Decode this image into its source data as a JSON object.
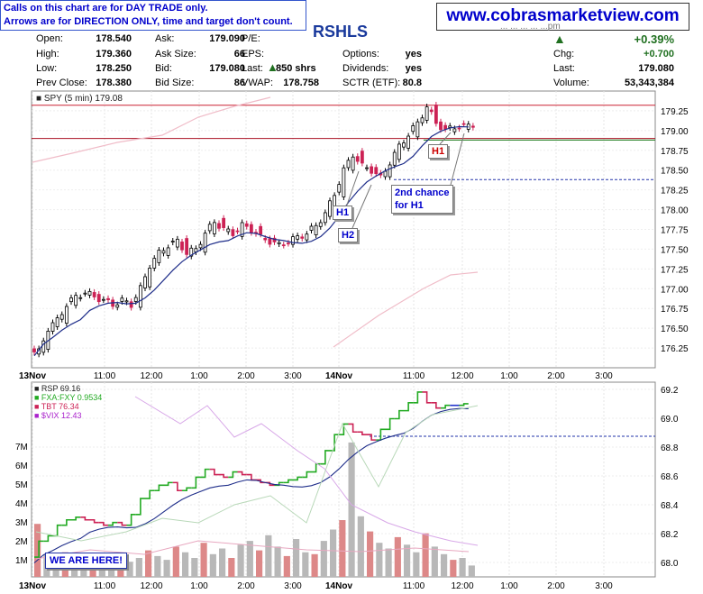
{
  "warning": {
    "line1": "Calls on this chart are for DAY TRADE only.",
    "line2": "Arrows are for DIRECTION ONLY, time and target don't count."
  },
  "site": "www.cobrasmarketview.com",
  "symbol": "RSHLS",
  "date_fragment": "... ... ... ... ...pm",
  "quote": {
    "open_label": "Open:",
    "open": "178.540",
    "high_label": "High:",
    "high": "179.360",
    "low_label": "Low:",
    "low": "178.250",
    "prev_label": "Prev Close:",
    "prev": "178.380",
    "ask_label": "Ask:",
    "ask": "179.090",
    "asksize_label": "Ask Size:",
    "asksize": "66",
    "bid_label": "Bid:",
    "bid": "179.080",
    "bidsize_label": "Bid Size:",
    "bidsize": "86",
    "pe_label": "P/E:",
    "pe": "",
    "eps_label": "EPS:",
    "eps": "",
    "last_label": "Last:",
    "last_shares": "850 shrs",
    "vwap_label": "VWAP:",
    "vwap": "178.758",
    "options_label": "Options:",
    "options": "yes",
    "dividends_label": "Dividends:",
    "dividends": "yes",
    "sctr_label": "SCTR (ETF):",
    "sctr": "80.8",
    "change_pct": "+0.39%",
    "chg_label": "Chg:",
    "chg": "+0.700",
    "last2_label": "Last:",
    "last2": "179.080",
    "volume_label": "Volume:",
    "volume": "53,343,384"
  },
  "colors": {
    "up": "#000000",
    "down": "#cc2255",
    "accent": "#0000cc",
    "green": "#207020",
    "rsp_up": "#22aa22",
    "rsp_down": "#cc2255",
    "rsp_flat": "#2233cc"
  },
  "annotations": {
    "h1_top": "H1",
    "h1_bottom": "H1",
    "h2": "H2",
    "second_chance": "2nd chance\nfor H1",
    "here": "WE ARE HERE!"
  },
  "chart_data": [
    {
      "type": "candlestick",
      "legend": "SPY (5 min) 179.08",
      "ylim": [
        176.0,
        179.5
      ],
      "y_ticks": [
        "179.25",
        "179.00",
        "178.75",
        "178.50",
        "178.25",
        "178.00",
        "177.75",
        "177.50",
        "177.25",
        "177.00",
        "176.75",
        "176.50",
        "176.25"
      ],
      "x_labels": [
        "13Nov",
        "11:00",
        "12:00",
        "1:00",
        "2:00",
        "3:00",
        "14Nov",
        "11:00",
        "12:00",
        "1:00",
        "2:00",
        "3:00"
      ],
      "close_path": [
        176.2,
        176.5,
        176.6,
        176.8,
        176.9,
        176.95,
        176.9,
        176.85,
        176.8,
        176.85,
        176.8,
        177.0,
        177.3,
        177.45,
        177.55,
        177.6,
        177.45,
        177.5,
        177.7,
        177.85,
        177.75,
        177.7,
        177.8,
        177.75,
        177.65,
        177.6,
        177.55,
        177.6,
        177.65,
        177.7,
        177.8,
        177.95,
        178.2,
        178.5,
        178.7,
        178.55,
        178.5,
        178.4,
        178.6,
        178.8,
        178.95,
        179.1,
        179.3,
        179.1,
        179.0,
        179.05,
        179.05,
        179.08
      ],
      "lines": {
        "red_resistance": 179.32,
        "red_prev_close": 178.9,
        "green": 178.88,
        "blue_dashed": 178.38
      },
      "notes": [
        "H1",
        "H2",
        "2nd chance for H1",
        "H1"
      ]
    },
    {
      "type": "line",
      "legend": [
        "RSP 69.16",
        "FXA:FXY 0.9534",
        "TBT 76.34",
        "$VIX 12.43"
      ],
      "ylim": [
        67.9,
        69.25
      ],
      "y_ticks_right": [
        "69.2",
        "69.0",
        "68.8",
        "68.6",
        "68.4",
        "68.2",
        "68.0"
      ],
      "y_ticks_left": [
        "7M",
        "6M",
        "5M",
        "4M",
        "3M",
        "2M",
        "1M"
      ],
      "x_labels": [
        "13Nov",
        "11:00",
        "12:00",
        "1:00",
        "2:00",
        "3:00",
        "14Nov",
        "11:00",
        "12:00",
        "1:00",
        "2:00",
        "3:00"
      ],
      "volume_m": [
        2.8,
        1.2,
        1.0,
        1.3,
        0.9,
        0.8,
        1.1,
        0.7,
        0.9,
        1.2,
        0.8,
        1.0,
        1.4,
        1.1,
        0.9,
        1.6,
        1.3,
        1.0,
        1.8,
        1.2,
        1.5,
        1.0,
        1.7,
        1.9,
        1.4,
        2.2,
        1.6,
        1.1,
        2.0,
        1.3,
        1.2,
        1.9,
        2.5,
        3.0,
        7.1,
        3.2,
        2.4,
        1.8,
        1.5,
        2.1,
        1.7,
        1.3,
        2.3,
        1.6,
        1.2,
        0.9,
        1.0,
        0.6
      ]
    }
  ]
}
